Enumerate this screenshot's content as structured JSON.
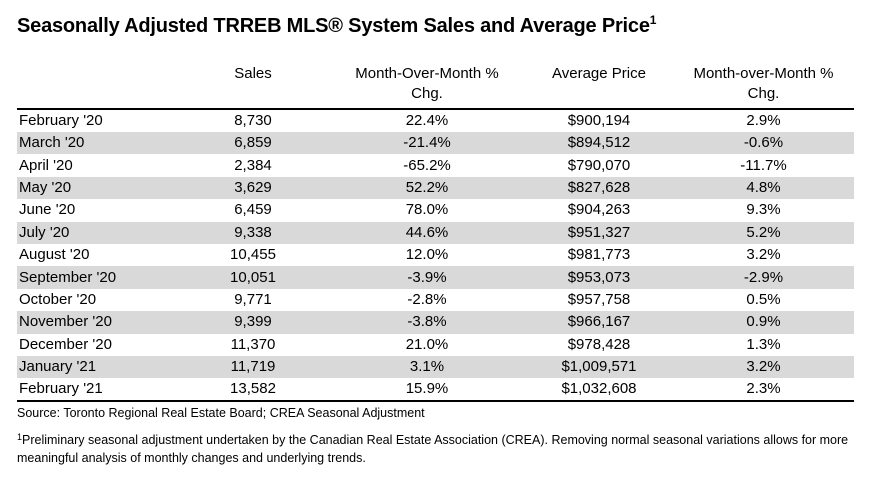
{
  "title": "Seasonally Adjusted TRREB MLS® System Sales and Average Price",
  "title_sup": "1",
  "columns": {
    "month": "",
    "sales": "Sales",
    "sales_mom": "Month-Over-Month % Chg.",
    "avg_price": "Average Price",
    "price_mom": "Month-over-Month % Chg."
  },
  "rows": [
    {
      "month": "February '20",
      "sales": "8,730",
      "sales_mom": "22.4%",
      "avg_price": "$900,194",
      "price_mom": "2.9%"
    },
    {
      "month": "March '20",
      "sales": "6,859",
      "sales_mom": "-21.4%",
      "avg_price": "$894,512",
      "price_mom": "-0.6%"
    },
    {
      "month": "April '20",
      "sales": "2,384",
      "sales_mom": "-65.2%",
      "avg_price": "$790,070",
      "price_mom": "-11.7%"
    },
    {
      "month": "May '20",
      "sales": "3,629",
      "sales_mom": "52.2%",
      "avg_price": "$827,628",
      "price_mom": "4.8%"
    },
    {
      "month": "June '20",
      "sales": "6,459",
      "sales_mom": "78.0%",
      "avg_price": "$904,263",
      "price_mom": "9.3%"
    },
    {
      "month": "July '20",
      "sales": "9,338",
      "sales_mom": "44.6%",
      "avg_price": "$951,327",
      "price_mom": "5.2%"
    },
    {
      "month": "August '20",
      "sales": "10,455",
      "sales_mom": "12.0%",
      "avg_price": "$981,773",
      "price_mom": "3.2%"
    },
    {
      "month": "September '20",
      "sales": "10,051",
      "sales_mom": "-3.9%",
      "avg_price": "$953,073",
      "price_mom": "-2.9%"
    },
    {
      "month": "October '20",
      "sales": "9,771",
      "sales_mom": "-2.8%",
      "avg_price": "$957,758",
      "price_mom": "0.5%"
    },
    {
      "month": "November '20",
      "sales": "9,399",
      "sales_mom": "-3.8%",
      "avg_price": "$966,167",
      "price_mom": "0.9%"
    },
    {
      "month": "December '20",
      "sales": "11,370",
      "sales_mom": "21.0%",
      "avg_price": "$978,428",
      "price_mom": "1.3%"
    },
    {
      "month": "January '21",
      "sales": "11,719",
      "sales_mom": "3.1%",
      "avg_price": "$1,009,571",
      "price_mom": "3.2%"
    },
    {
      "month": "February '21",
      "sales": "13,582",
      "sales_mom": "15.9%",
      "avg_price": "$1,032,608",
      "price_mom": "2.3%"
    }
  ],
  "source": "Source: Toronto Regional Real Estate Board; CREA Seasonal Adjustment",
  "footnote_sup": "1",
  "footnote": "Preliminary seasonal adjustment undertaken by the Canadian Real Estate Association (CREA). Removing normal seasonal variations allows for more meaningful analysis of monthly changes and underlying trends.",
  "colors": {
    "stripe": "#d9d9d9",
    "rule": "#000000"
  }
}
